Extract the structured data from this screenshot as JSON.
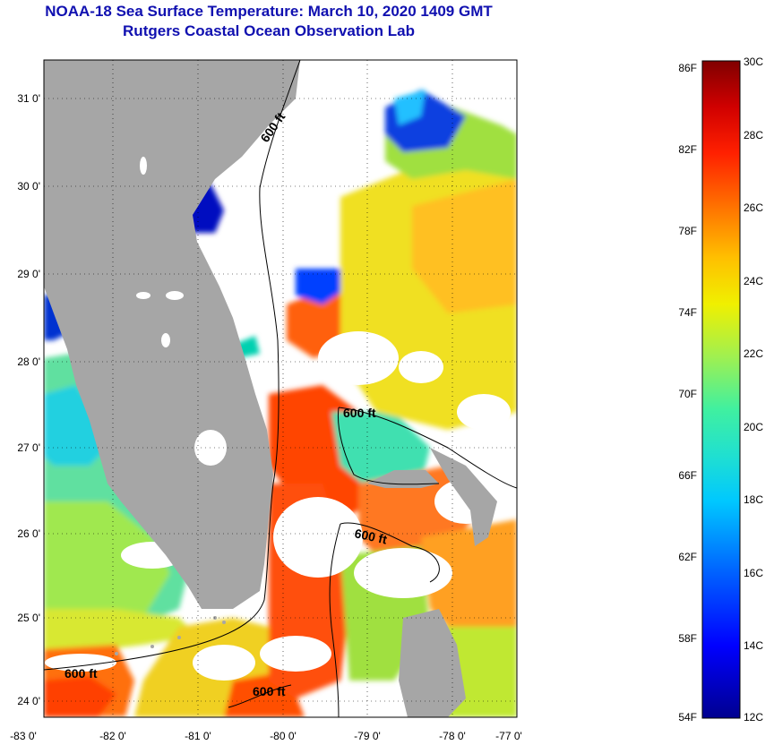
{
  "header": {
    "title": "NOAA-18 Sea Surface Temperature:  March 10, 2020 1409 GMT",
    "subtitle": "Rutgers Coastal Ocean Observation Lab"
  },
  "map": {
    "lat_labels": [
      "31 0'",
      "30 0'",
      "29 0'",
      "28 0'",
      "27 0'",
      "26 0'",
      "25 0'",
      "24 0'"
    ],
    "lon_labels": [
      "-83 0'",
      "-82 0'",
      "-81 0'",
      "-80 0'",
      "-79 0'",
      "-78 0'",
      "-77 0'"
    ],
    "contour_labels": [
      "600 ft",
      "600 ft",
      "600 ft",
      "600 ft",
      "600 ft"
    ]
  },
  "colorbar": {
    "fahrenheit_labels": [
      "86F",
      "82F",
      "78F",
      "74F",
      "70F",
      "66F",
      "62F",
      "58F",
      "54F"
    ],
    "celsius_labels": [
      "30C",
      "28C",
      "26C",
      "24C",
      "22C",
      "20C",
      "18C",
      "16C",
      "14C",
      "12C"
    ]
  },
  "colors": {
    "title": "#1010b0",
    "land": "#a6a6a6",
    "cloud": "#ffffff"
  }
}
